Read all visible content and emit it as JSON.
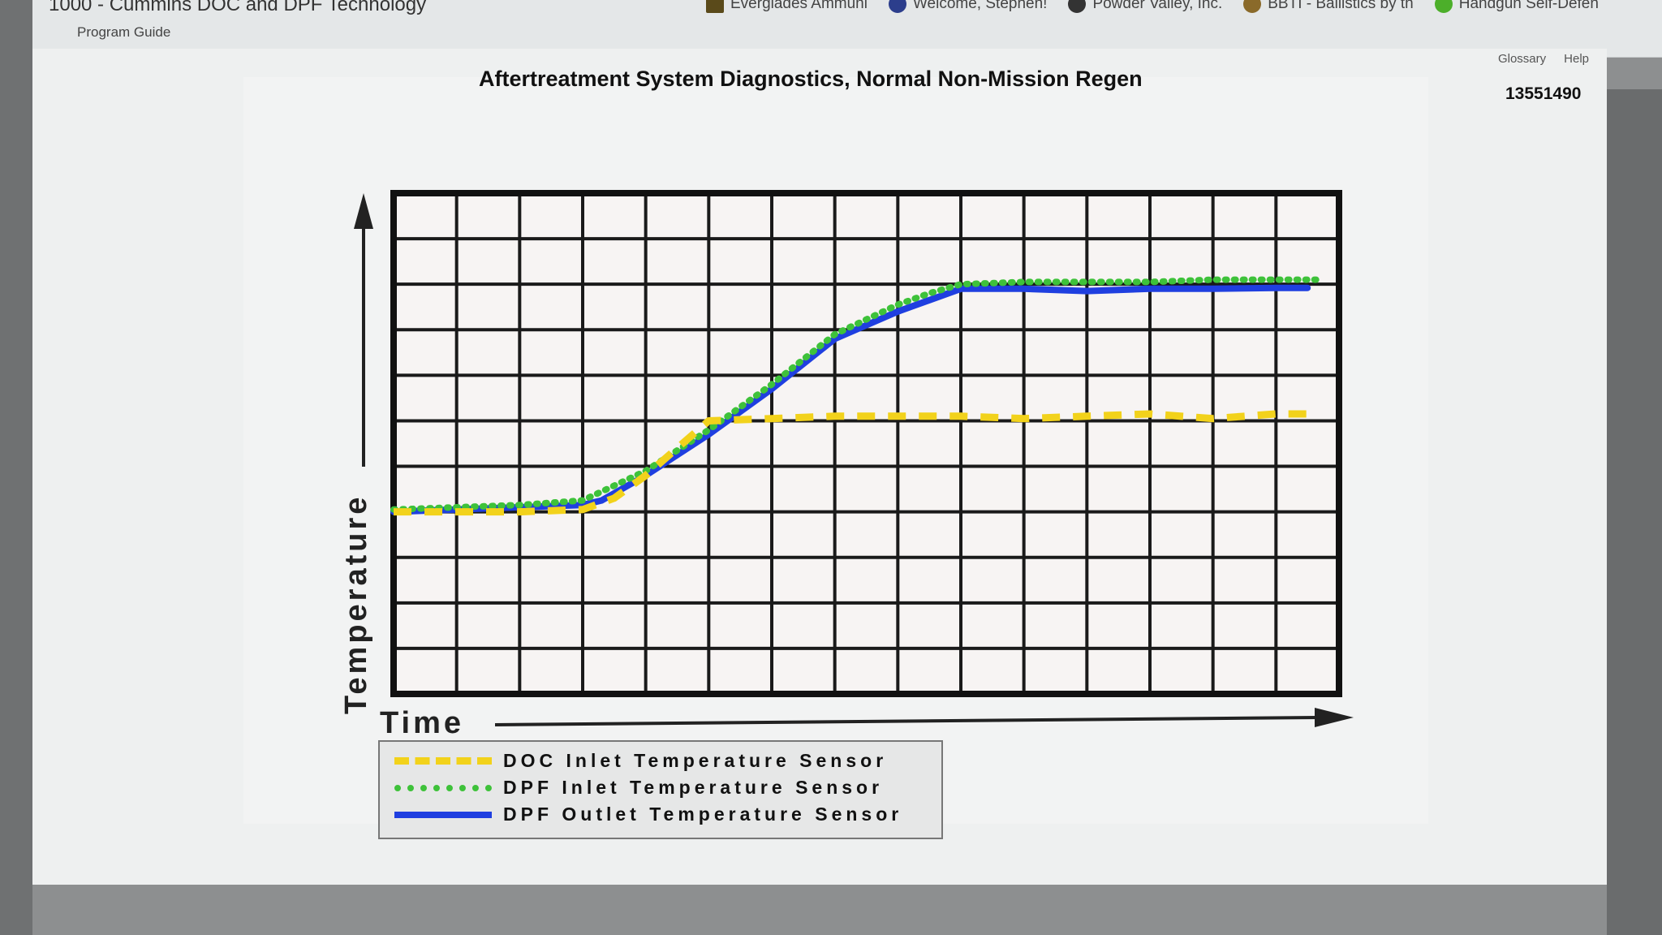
{
  "browser": {
    "tab_title": "1000 - Cummins DOC and DPF Technology",
    "bookmarks": [
      {
        "label": "Everglades Ammuni",
        "icon": "bookmark-icon"
      },
      {
        "label": "Welcome, Stephen!",
        "icon": "x-logo-icon"
      },
      {
        "label": "Powder Valley, Inc.",
        "icon": "target-icon"
      },
      {
        "label": "BBTI - Ballistics by th",
        "icon": "b-badge-icon"
      },
      {
        "label": "Handgun Self-Defen",
        "icon": "clover-icon"
      }
    ]
  },
  "page": {
    "program_guide": "Program Guide",
    "glossary": "Glossary",
    "help": "Help",
    "doc_number": "13551490"
  },
  "chart_data": {
    "type": "line",
    "title": "Aftertreatment System Diagnostics, Normal Non-Mission Regen",
    "xlabel": "Time",
    "ylabel": "Temperature",
    "xlim": [
      0,
      15
    ],
    "ylim": [
      0,
      11
    ],
    "grid": true,
    "axis_ticks": "none",
    "legend_placement": "bottom-left",
    "series": [
      {
        "name": "DOC Inlet Temperature Sensor",
        "color": "#f2d21b",
        "style": "dashed",
        "x": [
          0,
          1,
          2,
          3,
          3.5,
          4,
          4.5,
          5,
          6,
          7,
          8,
          9,
          10,
          11,
          12,
          13,
          14,
          14.5
        ],
        "y": [
          4.0,
          4.0,
          4.0,
          4.05,
          4.3,
          4.8,
          5.4,
          6.0,
          6.05,
          6.1,
          6.1,
          6.1,
          6.05,
          6.1,
          6.15,
          6.05,
          6.15,
          6.15
        ]
      },
      {
        "name": "DPF Inlet Temperature Sensor",
        "color": "#3ec23a",
        "style": "dotted",
        "x": [
          0,
          1,
          2,
          3,
          4,
          5,
          6,
          7,
          8,
          8.5,
          9,
          10,
          11,
          12,
          13,
          14,
          14.7
        ],
        "y": [
          4.05,
          4.1,
          4.15,
          4.25,
          4.9,
          5.8,
          6.8,
          7.9,
          8.55,
          8.8,
          9.0,
          9.05,
          9.05,
          9.05,
          9.1,
          9.1,
          9.1
        ]
      },
      {
        "name": "DPF Outlet Temperature Sensor",
        "color": "#1f3fe0",
        "style": "solid",
        "x": [
          0,
          1,
          2,
          3,
          3.3,
          4,
          5,
          6,
          7,
          8,
          8.5,
          9,
          10,
          11,
          12,
          13,
          14,
          14.5
        ],
        "y": [
          4.0,
          4.05,
          4.1,
          4.15,
          4.25,
          4.8,
          5.7,
          6.7,
          7.8,
          8.4,
          8.65,
          8.9,
          8.9,
          8.85,
          8.9,
          8.9,
          8.92,
          8.92
        ]
      }
    ]
  }
}
